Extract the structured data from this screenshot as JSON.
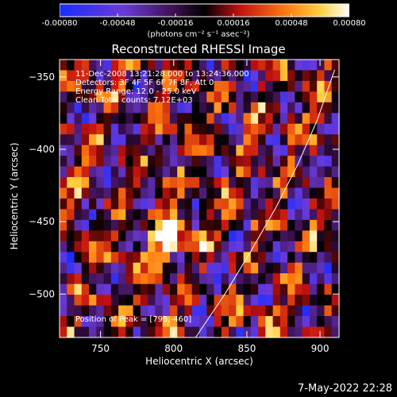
{
  "colorbar": {
    "ticks": [
      "-0.00080",
      "-0.00048",
      "-0.00016",
      "0.00016",
      "0.00048",
      "0.00080"
    ],
    "units": "(photons cm⁻² s⁻¹ asec⁻²)"
  },
  "info": {
    "time_range": "11-Dec-2008 13:21:28.000 to 13:24:36.000",
    "detectors": "Detectors: 3F 4F 5F 6F 7F 8F, Att 0",
    "energy": "Energy Range: 12.0 - 25.0 keV",
    "clean": "Clean     Total counts: 7.12E+03",
    "peak": "Position of Peak = [795,-460]"
  },
  "footer": {
    "date": "7-May-2022 22:28"
  },
  "colors": {
    "background": "#000000",
    "axes": "#ffffff",
    "limb": "#ffffff"
  },
  "chart_data": {
    "type": "heatmap",
    "title": "Reconstructed RHESSI Image",
    "xlabel": "Heliocentric X (arcsec)",
    "ylabel": "Heliocentric Y (arcsec)",
    "xlim": [
      722,
      913
    ],
    "ylim": [
      -530,
      -338
    ],
    "xticks": [
      750,
      800,
      850,
      900
    ],
    "yticks": [
      -350,
      -400,
      -450,
      -500
    ],
    "colorbar_range": [
      -0.0008,
      0.0008
    ],
    "colormap": "blue-purple-black-red-orange-yellow-white",
    "peak": {
      "x": 795,
      "y": -460
    },
    "limb_curve": [
      [
        815,
        -530
      ],
      [
        835,
        -500
      ],
      [
        853,
        -470
      ],
      [
        870,
        -440
      ],
      [
        885,
        -410
      ],
      [
        898,
        -380
      ],
      [
        910,
        -345
      ]
    ],
    "grid_shape": [
      26,
      38
    ]
  }
}
